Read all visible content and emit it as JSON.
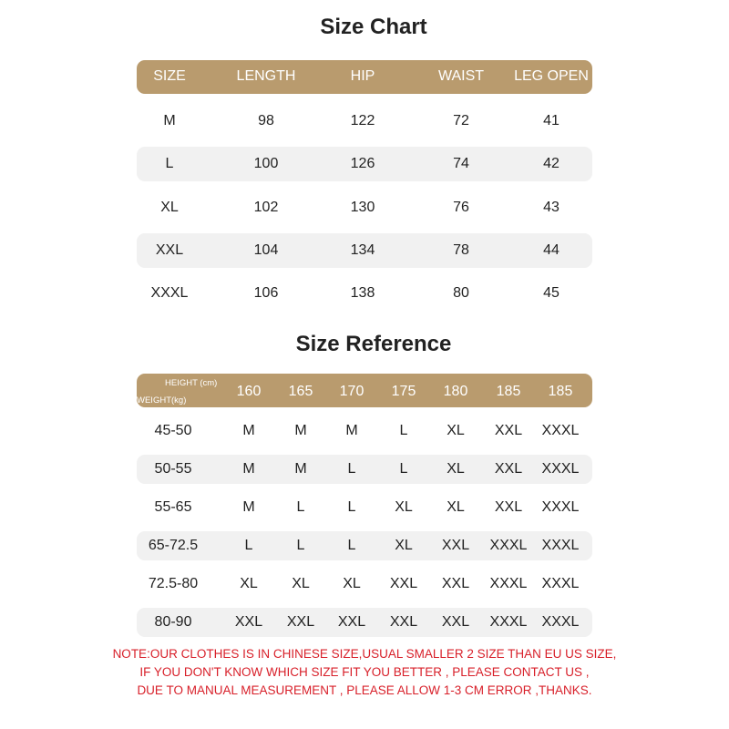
{
  "size_chart": {
    "title": "Size Chart",
    "headers": [
      "SIZE",
      "LENGTH",
      "HIP",
      "WAIST",
      "LEG OPEN"
    ],
    "rows": [
      [
        "M",
        "98",
        "122",
        "72",
        "41"
      ],
      [
        "L",
        "100",
        "126",
        "74",
        "42"
      ],
      [
        "XL",
        "102",
        "130",
        "76",
        "43"
      ],
      [
        "XXL",
        "104",
        "134",
        "78",
        "44"
      ],
      [
        "XXXL",
        "106",
        "138",
        "80",
        "45"
      ]
    ]
  },
  "size_reference": {
    "title": "Size Reference",
    "height_label": "HEIGHT (cm)",
    "weight_label": "WEIGHT(kg)",
    "heights": [
      "160",
      "165",
      "170",
      "175",
      "180",
      "185",
      "185"
    ],
    "rows": [
      {
        "weight": "45-50",
        "sizes": [
          "M",
          "M",
          "M",
          "L",
          "XL",
          "XXL",
          "XXXL"
        ]
      },
      {
        "weight": "50-55",
        "sizes": [
          "M",
          "M",
          "L",
          "L",
          "XL",
          "XXL",
          "XXXL"
        ]
      },
      {
        "weight": "55-65",
        "sizes": [
          "M",
          "L",
          "L",
          "XL",
          "XL",
          "XXL",
          "XXXL"
        ]
      },
      {
        "weight": "65-72.5",
        "sizes": [
          "L",
          "L",
          "L",
          "XL",
          "XXL",
          "XXXL",
          "XXXL"
        ]
      },
      {
        "weight": "72.5-80",
        "sizes": [
          "XL",
          "XL",
          "XL",
          "XXL",
          "XXL",
          "XXXL",
          "XXXL"
        ]
      },
      {
        "weight": "80-90",
        "sizes": [
          "XXL",
          "XXL",
          "XXL",
          "XXL",
          "XXL",
          "XXXL",
          "XXXL"
        ]
      }
    ]
  },
  "note": [
    "NOTE:OUR CLOTHES IS IN CHINESE SIZE,USUAL SMALLER 2 SIZE THAN EU US SIZE,",
    "IF YOU DON'T KNOW WHICH SIZE FIT YOU BETTER , PLEASE CONTACT US ,",
    "DUE TO MANUAL MEASUREMENT , PLEASE ALLOW 1-3 CM ERROR ,THANKS."
  ],
  "colors": {
    "header": "#b99b6e",
    "stripe": "#f1f1f1",
    "note": "#d8202a"
  }
}
